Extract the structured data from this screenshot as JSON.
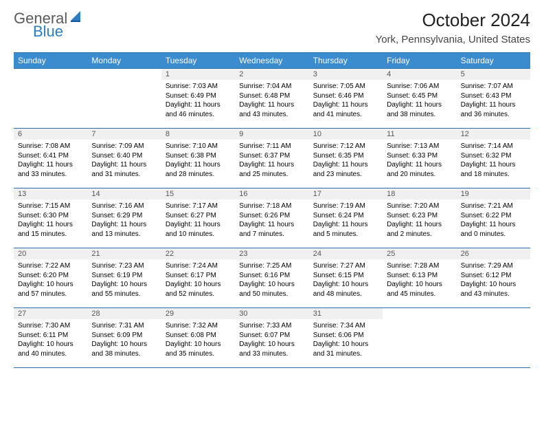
{
  "logo": {
    "word1": "General",
    "word2": "Blue"
  },
  "title": "October 2024",
  "location": "York, Pennsylvania, United States",
  "colors": {
    "header_bg": "#3b8bcf",
    "border": "#2a6da8",
    "daynum_bg": "#f0f0f0",
    "logo_blue": "#2b7cc4",
    "logo_gray": "#5a5a5a"
  },
  "day_headers": [
    "Sunday",
    "Monday",
    "Tuesday",
    "Wednesday",
    "Thursday",
    "Friday",
    "Saturday"
  ],
  "weeks": [
    [
      {
        "day": "",
        "lines": []
      },
      {
        "day": "",
        "lines": []
      },
      {
        "day": "1",
        "lines": [
          "Sunrise: 7:03 AM",
          "Sunset: 6:49 PM",
          "Daylight: 11 hours",
          "and 46 minutes."
        ]
      },
      {
        "day": "2",
        "lines": [
          "Sunrise: 7:04 AM",
          "Sunset: 6:48 PM",
          "Daylight: 11 hours",
          "and 43 minutes."
        ]
      },
      {
        "day": "3",
        "lines": [
          "Sunrise: 7:05 AM",
          "Sunset: 6:46 PM",
          "Daylight: 11 hours",
          "and 41 minutes."
        ]
      },
      {
        "day": "4",
        "lines": [
          "Sunrise: 7:06 AM",
          "Sunset: 6:45 PM",
          "Daylight: 11 hours",
          "and 38 minutes."
        ]
      },
      {
        "day": "5",
        "lines": [
          "Sunrise: 7:07 AM",
          "Sunset: 6:43 PM",
          "Daylight: 11 hours",
          "and 36 minutes."
        ]
      }
    ],
    [
      {
        "day": "6",
        "lines": [
          "Sunrise: 7:08 AM",
          "Sunset: 6:41 PM",
          "Daylight: 11 hours",
          "and 33 minutes."
        ]
      },
      {
        "day": "7",
        "lines": [
          "Sunrise: 7:09 AM",
          "Sunset: 6:40 PM",
          "Daylight: 11 hours",
          "and 31 minutes."
        ]
      },
      {
        "day": "8",
        "lines": [
          "Sunrise: 7:10 AM",
          "Sunset: 6:38 PM",
          "Daylight: 11 hours",
          "and 28 minutes."
        ]
      },
      {
        "day": "9",
        "lines": [
          "Sunrise: 7:11 AM",
          "Sunset: 6:37 PM",
          "Daylight: 11 hours",
          "and 25 minutes."
        ]
      },
      {
        "day": "10",
        "lines": [
          "Sunrise: 7:12 AM",
          "Sunset: 6:35 PM",
          "Daylight: 11 hours",
          "and 23 minutes."
        ]
      },
      {
        "day": "11",
        "lines": [
          "Sunrise: 7:13 AM",
          "Sunset: 6:33 PM",
          "Daylight: 11 hours",
          "and 20 minutes."
        ]
      },
      {
        "day": "12",
        "lines": [
          "Sunrise: 7:14 AM",
          "Sunset: 6:32 PM",
          "Daylight: 11 hours",
          "and 18 minutes."
        ]
      }
    ],
    [
      {
        "day": "13",
        "lines": [
          "Sunrise: 7:15 AM",
          "Sunset: 6:30 PM",
          "Daylight: 11 hours",
          "and 15 minutes."
        ]
      },
      {
        "day": "14",
        "lines": [
          "Sunrise: 7:16 AM",
          "Sunset: 6:29 PM",
          "Daylight: 11 hours",
          "and 13 minutes."
        ]
      },
      {
        "day": "15",
        "lines": [
          "Sunrise: 7:17 AM",
          "Sunset: 6:27 PM",
          "Daylight: 11 hours",
          "and 10 minutes."
        ]
      },
      {
        "day": "16",
        "lines": [
          "Sunrise: 7:18 AM",
          "Sunset: 6:26 PM",
          "Daylight: 11 hours",
          "and 7 minutes."
        ]
      },
      {
        "day": "17",
        "lines": [
          "Sunrise: 7:19 AM",
          "Sunset: 6:24 PM",
          "Daylight: 11 hours",
          "and 5 minutes."
        ]
      },
      {
        "day": "18",
        "lines": [
          "Sunrise: 7:20 AM",
          "Sunset: 6:23 PM",
          "Daylight: 11 hours",
          "and 2 minutes."
        ]
      },
      {
        "day": "19",
        "lines": [
          "Sunrise: 7:21 AM",
          "Sunset: 6:22 PM",
          "Daylight: 11 hours",
          "and 0 minutes."
        ]
      }
    ],
    [
      {
        "day": "20",
        "lines": [
          "Sunrise: 7:22 AM",
          "Sunset: 6:20 PM",
          "Daylight: 10 hours",
          "and 57 minutes."
        ]
      },
      {
        "day": "21",
        "lines": [
          "Sunrise: 7:23 AM",
          "Sunset: 6:19 PM",
          "Daylight: 10 hours",
          "and 55 minutes."
        ]
      },
      {
        "day": "22",
        "lines": [
          "Sunrise: 7:24 AM",
          "Sunset: 6:17 PM",
          "Daylight: 10 hours",
          "and 52 minutes."
        ]
      },
      {
        "day": "23",
        "lines": [
          "Sunrise: 7:25 AM",
          "Sunset: 6:16 PM",
          "Daylight: 10 hours",
          "and 50 minutes."
        ]
      },
      {
        "day": "24",
        "lines": [
          "Sunrise: 7:27 AM",
          "Sunset: 6:15 PM",
          "Daylight: 10 hours",
          "and 48 minutes."
        ]
      },
      {
        "day": "25",
        "lines": [
          "Sunrise: 7:28 AM",
          "Sunset: 6:13 PM",
          "Daylight: 10 hours",
          "and 45 minutes."
        ]
      },
      {
        "day": "26",
        "lines": [
          "Sunrise: 7:29 AM",
          "Sunset: 6:12 PM",
          "Daylight: 10 hours",
          "and 43 minutes."
        ]
      }
    ],
    [
      {
        "day": "27",
        "lines": [
          "Sunrise: 7:30 AM",
          "Sunset: 6:11 PM",
          "Daylight: 10 hours",
          "and 40 minutes."
        ]
      },
      {
        "day": "28",
        "lines": [
          "Sunrise: 7:31 AM",
          "Sunset: 6:09 PM",
          "Daylight: 10 hours",
          "and 38 minutes."
        ]
      },
      {
        "day": "29",
        "lines": [
          "Sunrise: 7:32 AM",
          "Sunset: 6:08 PM",
          "Daylight: 10 hours",
          "and 35 minutes."
        ]
      },
      {
        "day": "30",
        "lines": [
          "Sunrise: 7:33 AM",
          "Sunset: 6:07 PM",
          "Daylight: 10 hours",
          "and 33 minutes."
        ]
      },
      {
        "day": "31",
        "lines": [
          "Sunrise: 7:34 AM",
          "Sunset: 6:06 PM",
          "Daylight: 10 hours",
          "and 31 minutes."
        ]
      },
      {
        "day": "",
        "lines": []
      },
      {
        "day": "",
        "lines": []
      }
    ]
  ]
}
